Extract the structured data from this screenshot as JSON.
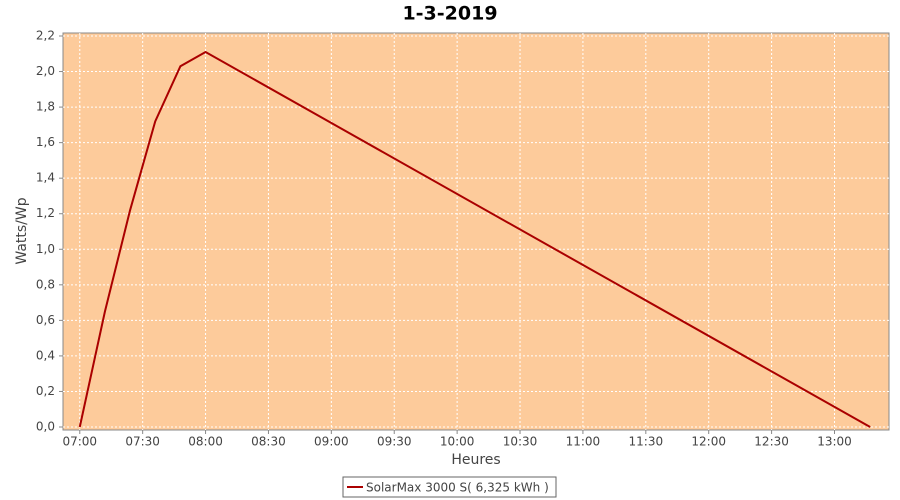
{
  "chart_data": {
    "type": "line",
    "title": "1-3-2019",
    "x_label": "Heures",
    "y_label": "Watts/Wp",
    "x": [
      "07:00",
      "07:12",
      "07:24",
      "07:36",
      "07:48",
      "08:00",
      "13:17"
    ],
    "series": [
      {
        "name": "SolarMax 3000 S( 6,325 kWh )",
        "color": "#aa0000",
        "values": [
          0,
          0.65,
          1.22,
          1.72,
          2.03,
          2.11,
          0
        ]
      }
    ],
    "xlim": [
      "06:52",
      "13:26"
    ],
    "xticks": [
      "07:00",
      "07:30",
      "08:00",
      "08:30",
      "09:00",
      "09:30",
      "10:00",
      "10:30",
      "11:00",
      "11:30",
      "12:00",
      "12:30",
      "13:00"
    ],
    "ylim": [
      0,
      2.2
    ],
    "yticks": [
      {
        "value": 0,
        "label": "0,0"
      },
      {
        "value": 0.2,
        "label": "0,2"
      },
      {
        "value": 0.4,
        "label": "0,4"
      },
      {
        "value": 0.6,
        "label": "0,6"
      },
      {
        "value": 0.8,
        "label": "0,8"
      },
      {
        "value": 1.0,
        "label": "1,0"
      },
      {
        "value": 1.2,
        "label": "1,2"
      },
      {
        "value": 1.4,
        "label": "1,4"
      },
      {
        "value": 1.6,
        "label": "1,6"
      },
      {
        "value": 1.8,
        "label": "1,8"
      },
      {
        "value": 2.0,
        "label": "2,0"
      },
      {
        "value": 2.2,
        "label": "2,2"
      }
    ],
    "background": "#fdcb9b",
    "grid": true,
    "legend": "bottom"
  }
}
